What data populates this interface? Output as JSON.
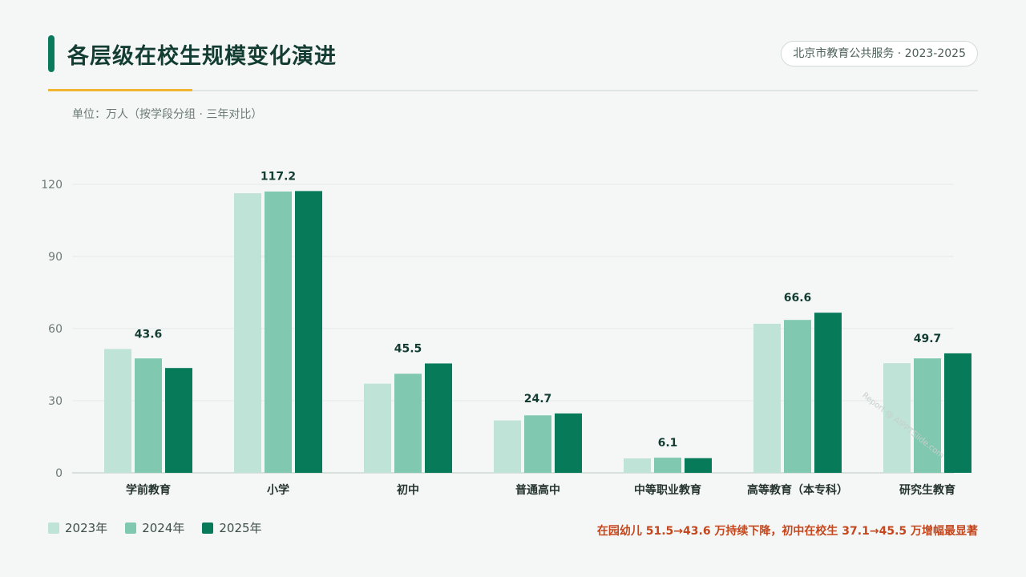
{
  "header": {
    "title": "各层级在校生规模变化演进",
    "badge": "北京市教育公共服务 · 2023-2025",
    "subtitle": "单位：万人（按学段分组 · 三年对比）"
  },
  "footer": {
    "note": "在园幼儿 51.5→43.6 万持续下降，初中在校生 37.1→45.5 万增幅最显著"
  },
  "watermark": "Report @ AIPPTSlide.com",
  "colors": {
    "2023": "#c0e3d7",
    "2024": "#80c8b0",
    "2025": "#077a5a",
    "axis_text": "#6c7a75",
    "label_text": "#133d33"
  },
  "chart_data": {
    "type": "bar",
    "categories": [
      "学前教育",
      "小学",
      "初中",
      "普通高中",
      "中等职业教育",
      "高等教育（本专科）",
      "研究生教育"
    ],
    "series": [
      {
        "name": "2023年",
        "values": [
          51.5,
          116.3,
          37.1,
          21.8,
          6.0,
          62.0,
          45.6
        ]
      },
      {
        "name": "2024年",
        "values": [
          47.6,
          117.0,
          41.2,
          23.9,
          6.3,
          63.6,
          47.6
        ]
      },
      {
        "name": "2025年",
        "values": [
          43.6,
          117.2,
          45.5,
          24.7,
          6.1,
          66.6,
          49.7
        ]
      }
    ],
    "data_labels": [
      "43.6",
      "117.2",
      "45.5",
      "24.7",
      "6.1",
      "66.6",
      "49.7"
    ],
    "ylim": [
      0,
      120
    ],
    "yticks": [
      0,
      30,
      60,
      90,
      120
    ],
    "grid": true,
    "legend_position": "bottom-left"
  }
}
